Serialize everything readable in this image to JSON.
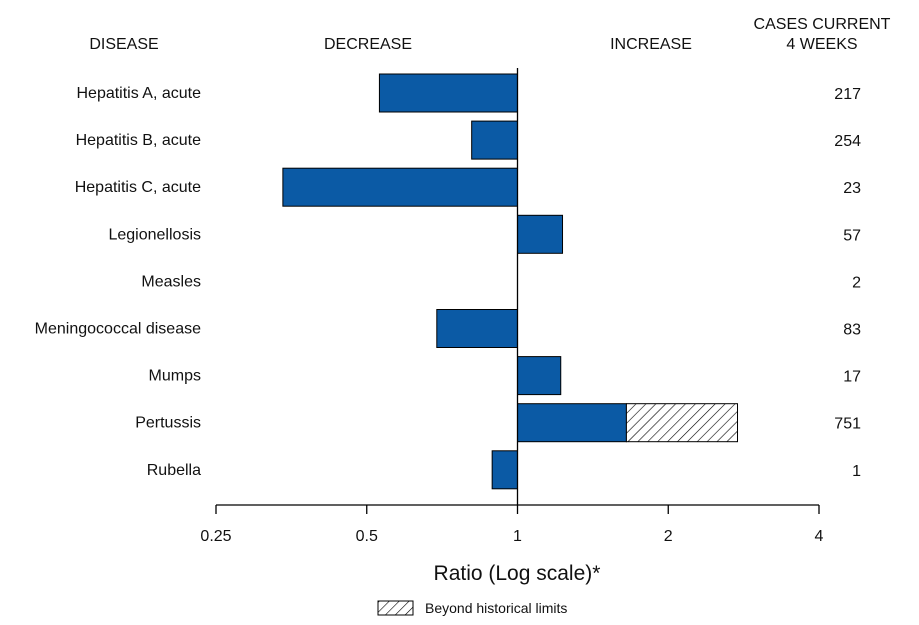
{
  "chart_data": {
    "type": "bar",
    "orientation": "horizontal",
    "scale": "log2",
    "headers": {
      "disease": "DISEASE",
      "decrease": "DECREASE",
      "increase": "INCREASE",
      "cases_line1": "CASES CURRENT",
      "cases_line2": "4 WEEKS"
    },
    "categories": [
      "Hepatitis A, acute",
      "Hepatitis B, acute",
      "Hepatitis C, acute",
      "Legionellosis",
      "Measles",
      "Meningococcal disease",
      "Mumps",
      "Pertussis",
      "Rubella"
    ],
    "values": [
      0.53,
      0.81,
      0.34,
      1.23,
      1.0,
      0.69,
      1.22,
      1.65,
      0.89
    ],
    "beyond_limit_to": [
      null,
      null,
      null,
      null,
      null,
      null,
      null,
      2.75,
      null
    ],
    "cases": [
      "217",
      "254",
      "23",
      "57",
      "2",
      "83",
      "17",
      "751",
      "1"
    ],
    "xticks": [
      0.25,
      0.5,
      1,
      2,
      4
    ],
    "xtick_labels": [
      "0.25",
      "0.5",
      "1",
      "2",
      "4"
    ],
    "xlim": [
      0.25,
      4
    ],
    "xlabel": "Ratio (Log scale)*",
    "legend": {
      "label": "Beyond historical limits",
      "position": "bottom-center"
    },
    "colors": {
      "bar": "#0b5aa5",
      "outline": "#000000"
    }
  }
}
